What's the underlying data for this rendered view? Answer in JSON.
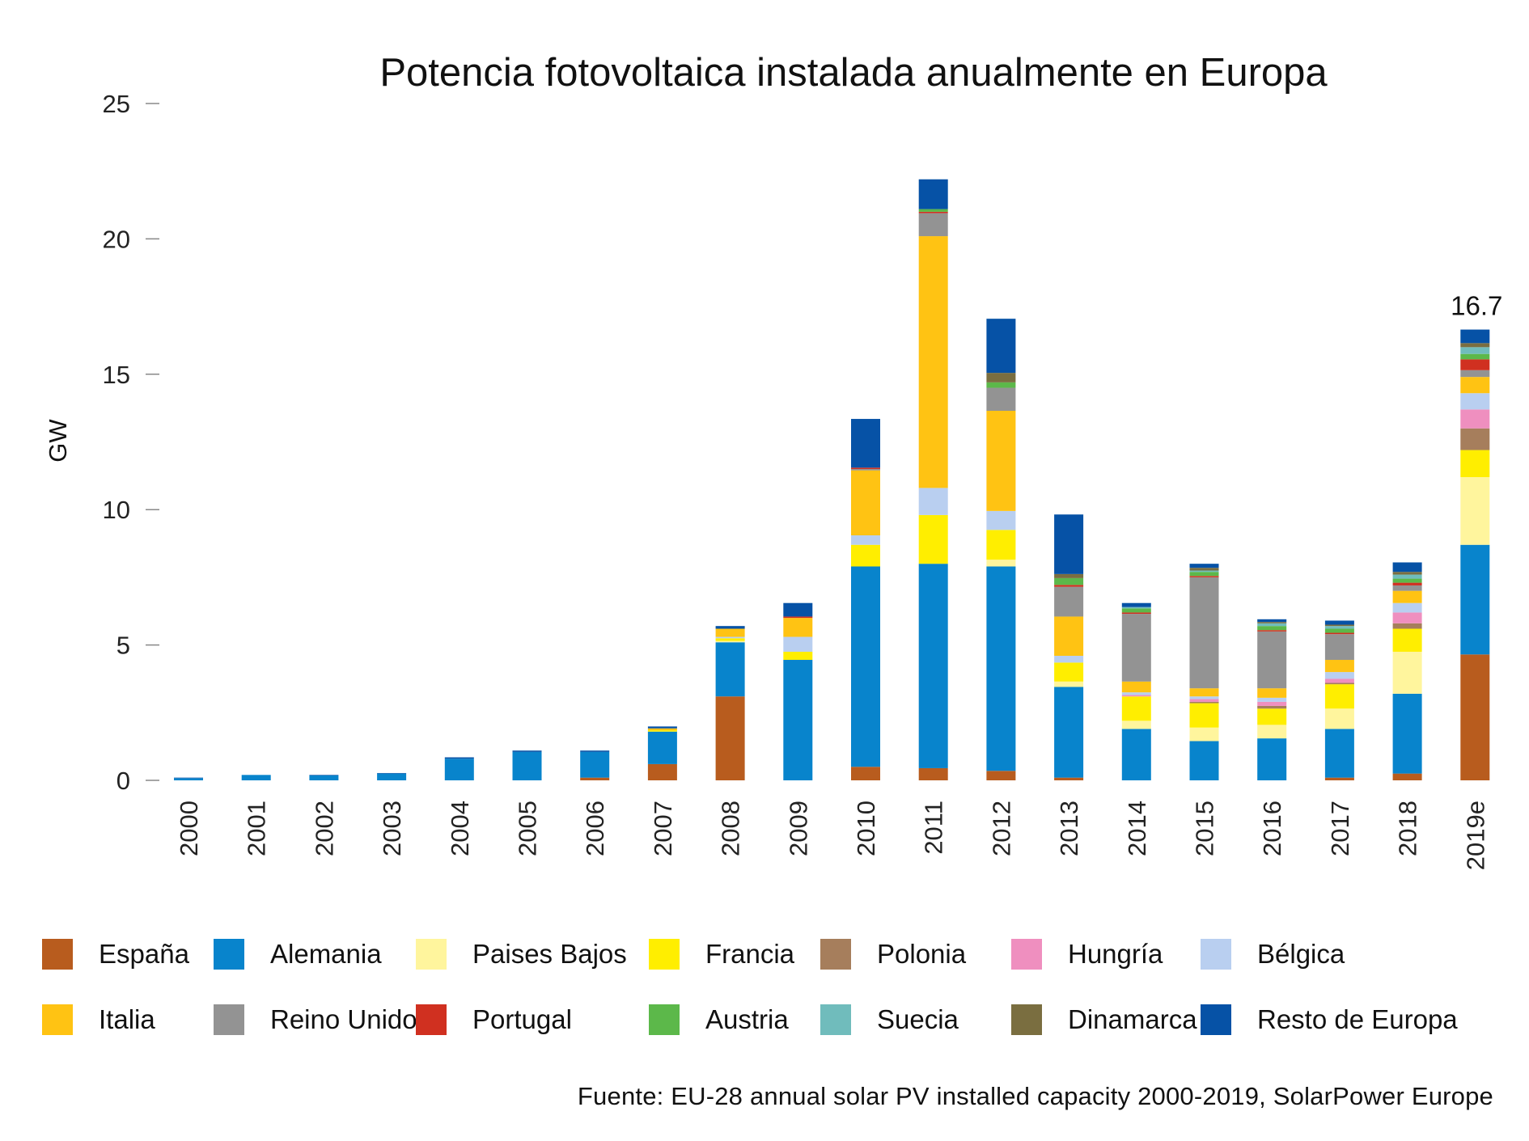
{
  "chart_data": {
    "type": "bar",
    "stacked": true,
    "title": "Potencia fotovoltaica instalada anualmente en Europa",
    "ylabel": "GW",
    "ylim": [
      0,
      25
    ],
    "yticks": [
      0,
      5,
      10,
      15,
      20,
      25
    ],
    "categories": [
      "2000",
      "2001",
      "2002",
      "2003",
      "2004",
      "2005",
      "2006",
      "2007",
      "2008",
      "2009",
      "2010",
      "2011",
      "2012",
      "2013",
      "2014",
      "2015",
      "2016",
      "2017",
      "2018",
      "2019e"
    ],
    "series": [
      {
        "name": "España",
        "color": "#b85c1e",
        "values": [
          0,
          0,
          0,
          0,
          0,
          0,
          0.1,
          0.6,
          3.1,
          0,
          0.5,
          0.45,
          0.35,
          0.1,
          0,
          0,
          0,
          0.1,
          0.25,
          4.65
        ]
      },
      {
        "name": "Alemania",
        "color": "#0884cc",
        "values": [
          0.08,
          0.2,
          0.18,
          0.25,
          0.8,
          1.05,
          0.95,
          1.2,
          2.0,
          4.45,
          7.4,
          7.55,
          7.55,
          3.35,
          1.9,
          1.45,
          1.55,
          1.8,
          2.95,
          4.05
        ]
      },
      {
        "name": "Paises Bajos",
        "color": "#fff59d",
        "values": [
          0,
          0,
          0,
          0,
          0,
          0,
          0,
          0,
          0.05,
          0,
          0,
          0,
          0.25,
          0.2,
          0.3,
          0.5,
          0.5,
          0.75,
          1.55,
          2.5
        ]
      },
      {
        "name": "Francia",
        "color": "#ffee00",
        "values": [
          0,
          0,
          0,
          0,
          0,
          0,
          0,
          0.05,
          0.1,
          0.3,
          0.8,
          1.8,
          1.1,
          0.7,
          0.9,
          0.9,
          0.6,
          0.9,
          0.85,
          1.0
        ]
      },
      {
        "name": "Polonia",
        "color": "#a67e5c",
        "values": [
          0,
          0,
          0,
          0,
          0,
          0,
          0,
          0,
          0,
          0,
          0,
          0,
          0,
          0,
          0,
          0.05,
          0.1,
          0.05,
          0.2,
          0.8
        ]
      },
      {
        "name": "Hungría",
        "color": "#ef8fbf",
        "values": [
          0,
          0,
          0,
          0,
          0,
          0,
          0,
          0,
          0,
          0,
          0,
          0,
          0,
          0,
          0.05,
          0.1,
          0.15,
          0.15,
          0.4,
          0.7
        ]
      },
      {
        "name": "Bélgica",
        "color": "#b9cff0",
        "values": [
          0,
          0,
          0,
          0,
          0,
          0,
          0,
          0,
          0.05,
          0.55,
          0.35,
          1.0,
          0.7,
          0.25,
          0.1,
          0.1,
          0.15,
          0.25,
          0.35,
          0.6
        ]
      },
      {
        "name": "Italia",
        "color": "#ffc313",
        "values": [
          0,
          0,
          0,
          0,
          0,
          0,
          0,
          0.07,
          0.3,
          0.7,
          2.4,
          9.3,
          3.7,
          1.45,
          0.4,
          0.3,
          0.35,
          0.45,
          0.45,
          0.6
        ]
      },
      {
        "name": "Reino Unido",
        "color": "#939393",
        "values": [
          0,
          0,
          0,
          0,
          0,
          0,
          0,
          0,
          0,
          0,
          0.05,
          0.85,
          0.85,
          1.1,
          2.5,
          4.1,
          2.1,
          0.95,
          0.2,
          0.25
        ]
      },
      {
        "name": "Portugal",
        "color": "#d03020",
        "values": [
          0,
          0,
          0,
          0,
          0,
          0,
          0,
          0,
          0,
          0.05,
          0.05,
          0.05,
          0,
          0.07,
          0.05,
          0.05,
          0.05,
          0.05,
          0.1,
          0.4
        ]
      },
      {
        "name": "Austria",
        "color": "#5cb84a",
        "values": [
          0,
          0,
          0,
          0,
          0,
          0,
          0,
          0,
          0,
          0,
          0,
          0.1,
          0.2,
          0.25,
          0.15,
          0.15,
          0.15,
          0.15,
          0.15,
          0.2
        ]
      },
      {
        "name": "Suecia",
        "color": "#70bcbc",
        "values": [
          0,
          0,
          0,
          0,
          0,
          0,
          0,
          0,
          0,
          0,
          0,
          0,
          0,
          0,
          0.05,
          0.05,
          0.1,
          0.1,
          0.15,
          0.25
        ]
      },
      {
        "name": "Dinamarca",
        "color": "#7a6e40",
        "values": [
          0,
          0,
          0,
          0,
          0,
          0,
          0,
          0,
          0,
          0,
          0,
          0,
          0.35,
          0.15,
          0,
          0.1,
          0.05,
          0.05,
          0.1,
          0.15
        ]
      },
      {
        "name": "Resto de Europa",
        "color": "#0652a6",
        "values": [
          0.02,
          0,
          0.02,
          0.02,
          0.05,
          0.05,
          0.05,
          0.07,
          0.1,
          0.5,
          1.8,
          1.1,
          2.0,
          2.2,
          0.15,
          0.15,
          0.1,
          0.15,
          0.35,
          0.5
        ]
      }
    ],
    "annotations": [
      {
        "category": "2019e",
        "text": "16.7"
      }
    ],
    "grid": false,
    "legend_position": "bottom"
  },
  "source": "Fuente: EU-28 annual solar PV installed capacity 2000-2019, SolarPower Europe"
}
